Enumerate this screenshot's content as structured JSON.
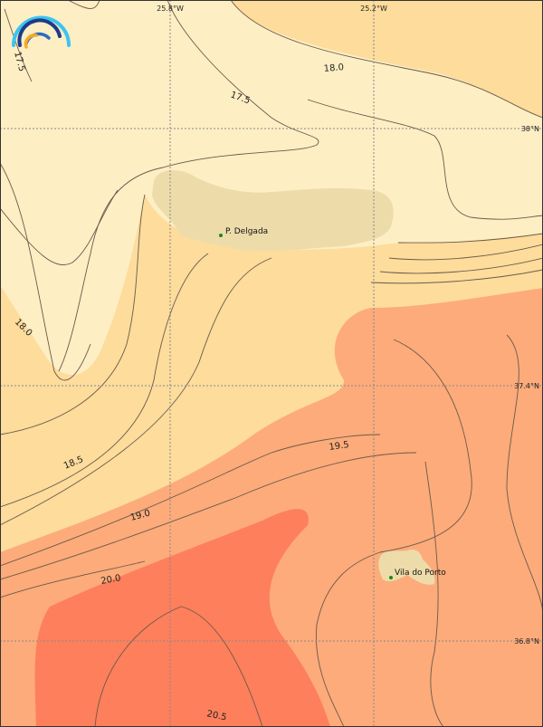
{
  "colors": {
    "band_below_18": "#feeec4",
    "band_18_19": "#fddc9c",
    "band_19_20": "#fdab7a",
    "band_above_20": "#fe7f5c",
    "land": "#eddcaa",
    "contour": "#6b5a4a",
    "grid": "#888888",
    "place_marker": "#1a8a1a"
  },
  "logo": {
    "icon": "rainbow-arcs-logo"
  },
  "grid_labels": {
    "lon": [
      "25.8°W",
      "25.2°W"
    ],
    "lat": [
      "38°N",
      "37.4°N",
      "36.8°N"
    ]
  },
  "contour_labels": [
    "17.5",
    "18.0",
    "17.5",
    "18.0",
    "18.5",
    "19.0",
    "19.5",
    "20.0",
    "20.5"
  ],
  "places": [
    {
      "name": "P. Delgada"
    },
    {
      "name": "Vila do Porto"
    }
  ]
}
